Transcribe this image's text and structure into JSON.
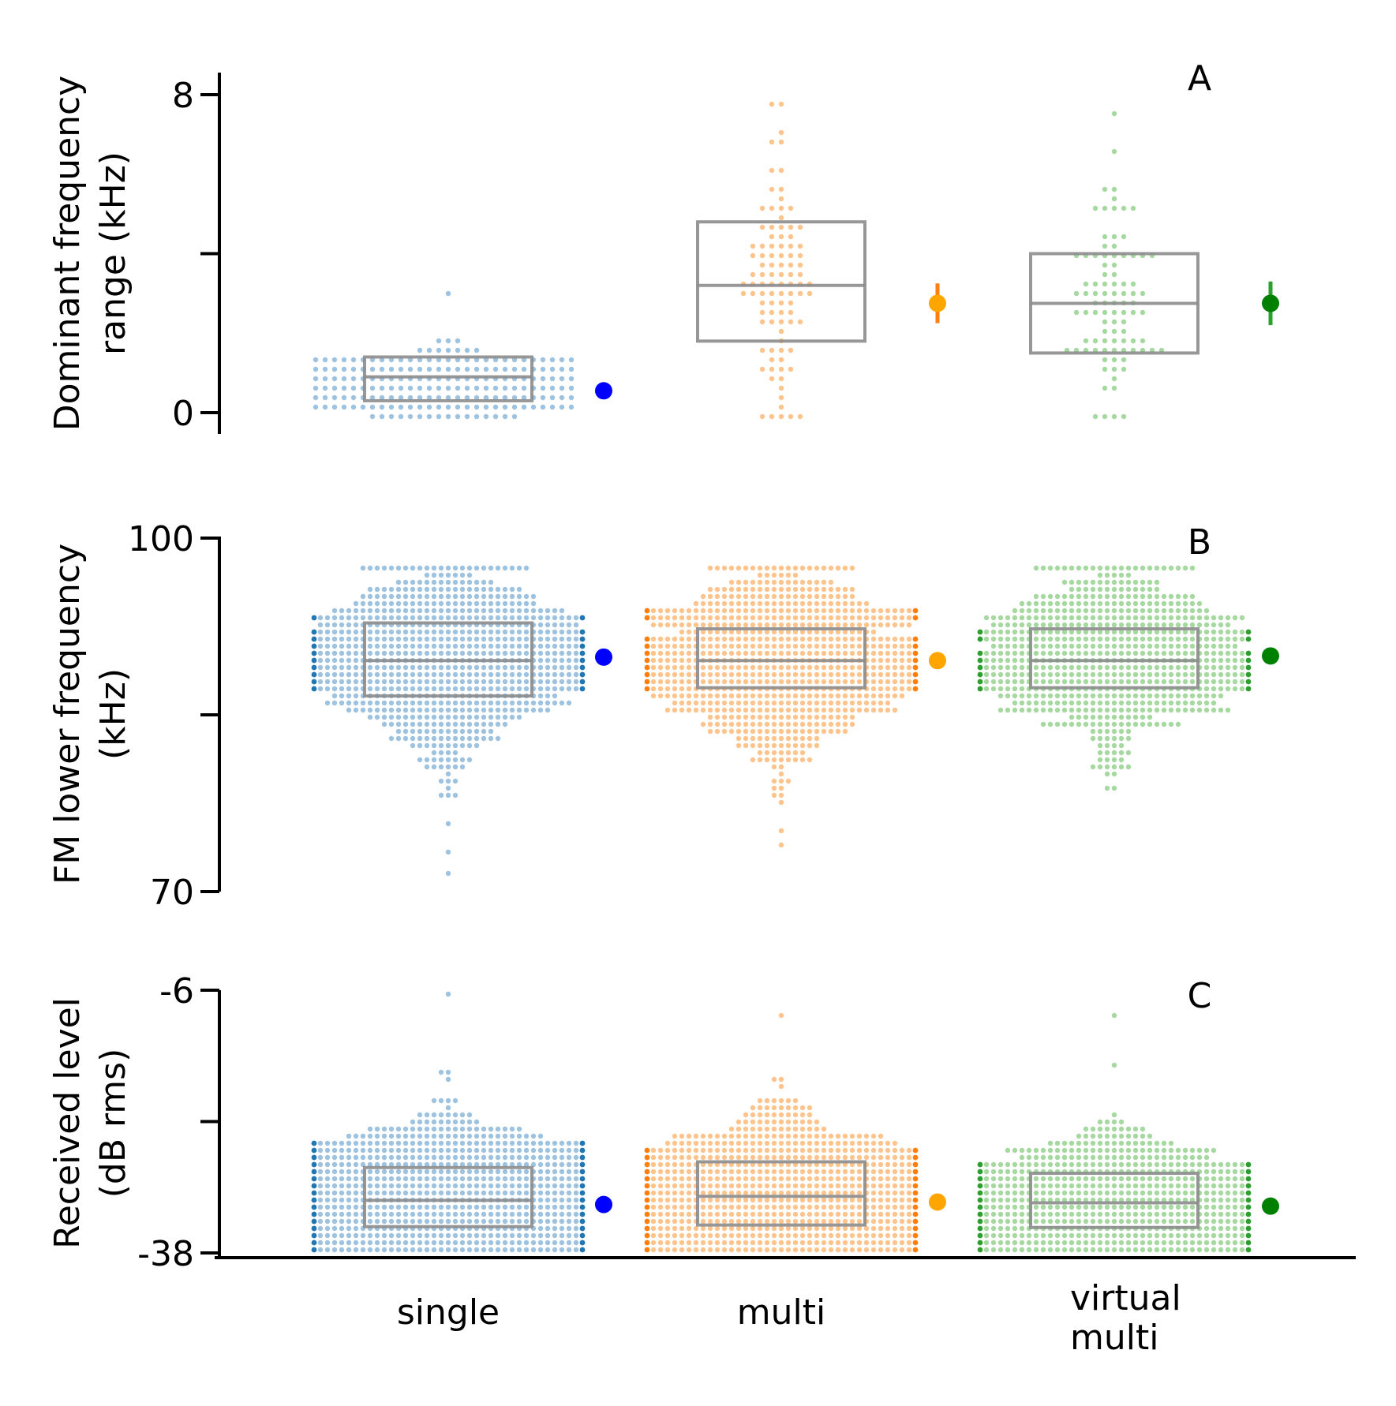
{
  "chart_data": [
    {
      "panel_label": "A",
      "type": "box",
      "ylabel": [
        "Dominant frequency",
        "range (kHz)"
      ],
      "ylim": [
        -0.5,
        8.5
      ],
      "yticks": [
        0,
        4,
        8
      ],
      "yticklabels": [
        "0",
        "",
        "8"
      ],
      "categories": [
        "single",
        "multi",
        "virtual multi"
      ],
      "boxes": [
        {
          "category": "single",
          "q1": 0.3,
          "median": 0.9,
          "q3": 1.4
        },
        {
          "category": "multi",
          "q1": 1.8,
          "median": 3.2,
          "q3": 4.8
        },
        {
          "category": "virtual multi",
          "q1": 1.5,
          "median": 2.75,
          "q3": 4.0
        }
      ],
      "summary_points": [
        {
          "category": "single",
          "value": 0.55,
          "err_low": 0.55,
          "err_high": 0.55
        },
        {
          "category": "multi",
          "value": 2.75,
          "err_low": 2.25,
          "err_high": 3.25
        },
        {
          "category": "virtual multi",
          "value": 2.75,
          "err_low": 2.2,
          "err_high": 3.3
        }
      ],
      "swarm": [
        {
          "category": "single",
          "min": 0.0,
          "max": 3.05,
          "center": 0.75,
          "spread": 0.45,
          "n": 320
        },
        {
          "category": "multi",
          "min": 0.0,
          "max": 7.7,
          "center": 3.3,
          "spread": 1.6,
          "n": 95
        },
        {
          "category": "virtual multi",
          "min": 0.0,
          "max": 7.6,
          "center": 2.8,
          "spread": 1.4,
          "n": 90
        }
      ]
    },
    {
      "panel_label": "B",
      "type": "box",
      "ylabel": [
        "FM lower frequency",
        "(kHz)"
      ],
      "ylim": [
        70,
        100
      ],
      "yticks": [
        70,
        85,
        100
      ],
      "yticklabels": [
        "70",
        "",
        "100"
      ],
      "categories": [
        "single",
        "multi",
        "virtual multi"
      ],
      "boxes": [
        {
          "category": "single",
          "q1": 86.6,
          "median": 89.6,
          "q3": 92.8
        },
        {
          "category": "multi",
          "q1": 87.3,
          "median": 89.6,
          "q3": 92.3
        },
        {
          "category": "virtual multi",
          "q1": 87.3,
          "median": 89.6,
          "q3": 92.3
        }
      ],
      "summary_points": [
        {
          "category": "single",
          "value": 89.9
        },
        {
          "category": "multi",
          "value": 89.6
        },
        {
          "category": "virtual multi",
          "value": 90.0
        }
      ],
      "swarm": [
        {
          "category": "single",
          "min": 71.8,
          "max": 97.3,
          "center": 89.6,
          "spread": 4.0,
          "n": 900
        },
        {
          "category": "multi",
          "min": 74.2,
          "max": 97.3,
          "center": 89.6,
          "spread": 3.8,
          "n": 900
        },
        {
          "category": "virtual multi",
          "min": 78.6,
          "max": 97.3,
          "center": 89.6,
          "spread": 3.6,
          "n": 800
        }
      ]
    },
    {
      "panel_label": "C",
      "type": "box",
      "ylabel": [
        "Received level",
        "(dB rms)"
      ],
      "ylim": [
        -38,
        -6
      ],
      "yticks": [
        -38,
        -22,
        -6
      ],
      "yticklabels": [
        "-38",
        "",
        "-6"
      ],
      "categories": [
        "single",
        "multi",
        "virtual multi"
      ],
      "boxes": [
        {
          "category": "single",
          "q1": -34.8,
          "median": -31.6,
          "q3": -27.6
        },
        {
          "category": "multi",
          "q1": -34.6,
          "median": -31.1,
          "q3": -26.9
        },
        {
          "category": "virtual multi",
          "q1": -34.9,
          "median": -31.9,
          "q3": -28.3
        }
      ],
      "summary_points": [
        {
          "category": "single",
          "value": -32.1
        },
        {
          "category": "multi",
          "value": -31.8
        },
        {
          "category": "virtual multi",
          "value": -32.3
        }
      ],
      "swarm": [
        {
          "category": "single",
          "min": -38.0,
          "max": -6.3,
          "center": -32.0,
          "spread": 4.5,
          "n": 1800
        },
        {
          "category": "multi",
          "min": -38.0,
          "max": -9.3,
          "center": -31.5,
          "spread": 4.5,
          "n": 1500
        },
        {
          "category": "virtual multi",
          "min": -38.0,
          "max": -9.3,
          "center": -32.5,
          "spread": 4.0,
          "n": 1300
        }
      ]
    }
  ],
  "xticklabels": [
    [
      "single"
    ],
    [
      "multi"
    ],
    [
      "virtual",
      "multi"
    ]
  ],
  "colors": {
    "single_swarm": "#9ec3e0",
    "single_edge": "#1f77b4",
    "multi_swarm": "#fdc48e",
    "multi_edge": "#ff7f0e",
    "virtual_swarm": "#a6d9a0",
    "virtual_edge": "#2ca02c",
    "single_summary": "#0000ff",
    "multi_summary": "#ffa500",
    "virtual_summary": "#008000",
    "box": "#8c8c8c",
    "axis": "#000000"
  }
}
